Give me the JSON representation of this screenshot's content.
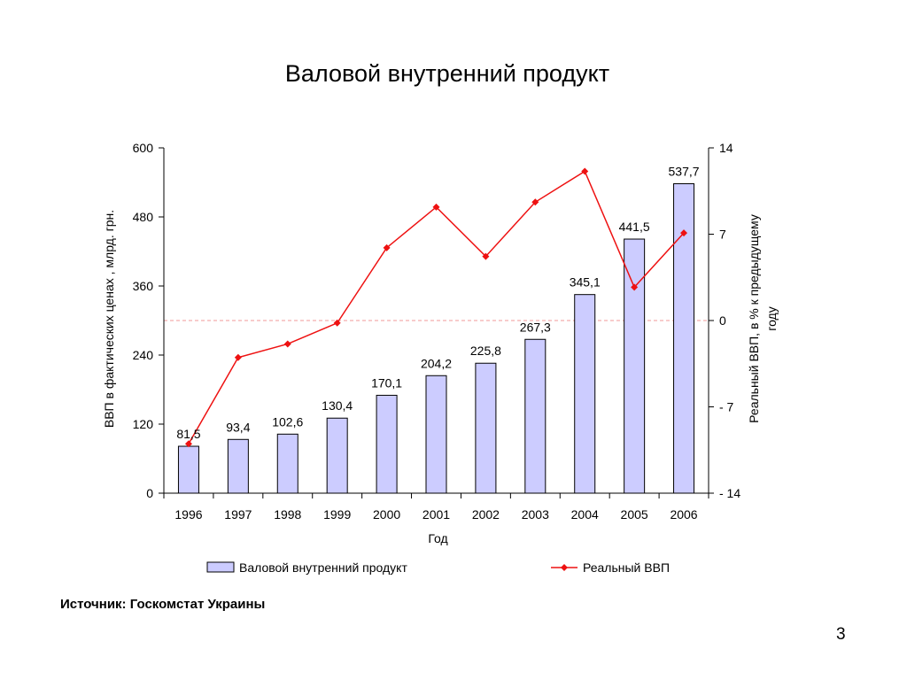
{
  "slide": {
    "source_text": "Источник: Госкомстат Украины",
    "page_number": "3"
  },
  "chart_data": {
    "type": "bar",
    "title": "Валовой внутренний продукт",
    "xlabel": "Год",
    "ylabel": "ВВП в фактических ценах , млрд. грн.",
    "y2label_line1": "Реальный ВВП, в % к предыдущему",
    "y2label_line2": "году",
    "categories": [
      "1996",
      "1997",
      "1998",
      "1999",
      "2000",
      "2001",
      "2002",
      "2003",
      "2004",
      "2005",
      "2006"
    ],
    "ylim": [
      0,
      600
    ],
    "yticks": [
      "0",
      "120",
      "240",
      "360",
      "480",
      "600"
    ],
    "y2lim": [
      -14,
      14
    ],
    "y2ticks": [
      "- 14",
      "- 7",
      "0",
      "7",
      "14"
    ],
    "series": [
      {
        "name": "Валовой внутренний продукт",
        "type": "bar",
        "axis": "left",
        "color": "#ccccff",
        "values": [
          81.5,
          93.4,
          102.6,
          130.4,
          170.1,
          204.2,
          225.8,
          267.3,
          345.1,
          441.5,
          537.7
        ],
        "labels": [
          "81,5",
          "93,4",
          "102,6",
          "130,4",
          "170,1",
          "204,2",
          "225,8",
          "267,3",
          "345,1",
          "441,5",
          "537,7"
        ]
      },
      {
        "name": "Реальный ВВП",
        "type": "line",
        "axis": "right",
        "color": "#ee1111",
        "values": [
          -10,
          -3,
          -1.9,
          -0.2,
          5.9,
          9.2,
          5.2,
          9.6,
          12.1,
          2.7,
          7.1
        ]
      }
    ],
    "reference_line": {
      "axis": "right",
      "value": 0,
      "style": "dashed",
      "color": "#f09a9a"
    },
    "grid": false,
    "legend": "bottom"
  }
}
